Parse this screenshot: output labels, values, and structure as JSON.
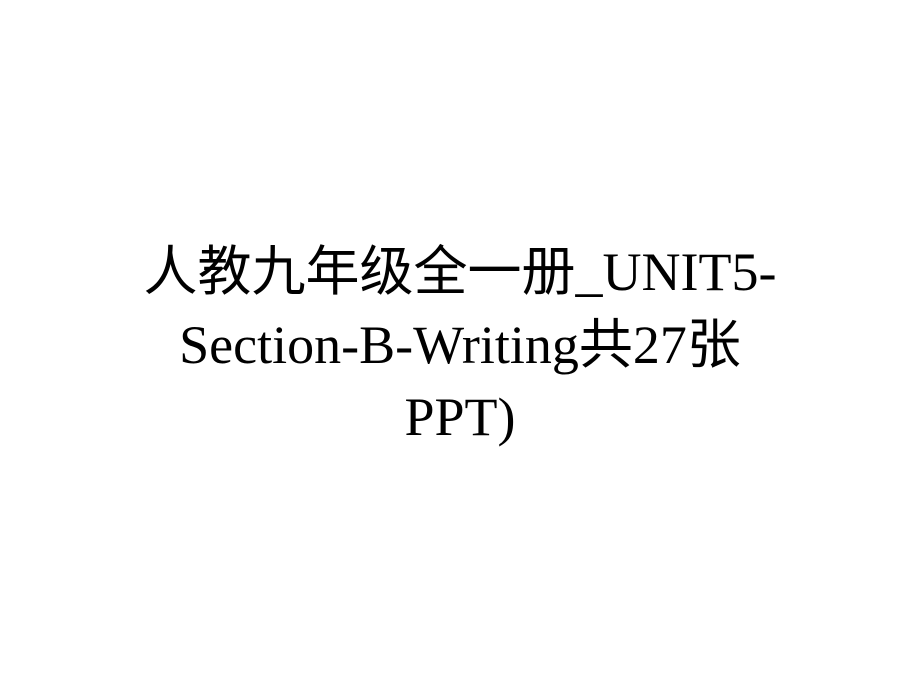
{
  "slide": {
    "title_line1": "人教九年级全一册_UNIT5-",
    "title_line2": "Section-B-Writing共27张",
    "title_line3": "PPT)",
    "background_color": "#ffffff",
    "text_color": "#000000",
    "font_size": 54,
    "font_family": "SimSun, 宋体, Times New Roman, serif"
  }
}
